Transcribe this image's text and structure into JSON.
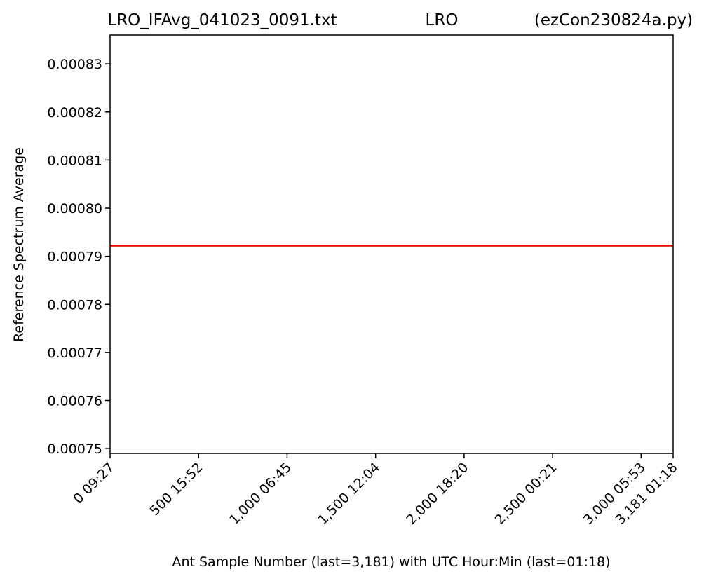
{
  "chart_data": {
    "type": "line",
    "title_parts": {
      "left": "LRO_IFAvg_041023_0091.txt",
      "center": "LRO",
      "right": "(ezCon230824a.py)"
    },
    "xlabel": "Ant Sample Number (last=3,181) with UTC Hour:Min (last=01:18)",
    "ylabel": "Reference Spectrum Average",
    "xlim": [
      0,
      3181
    ],
    "ylim": [
      0.000749,
      0.000836
    ],
    "x_ticks": [
      {
        "value": 0,
        "label": "0  09:27"
      },
      {
        "value": 500,
        "label": "500  15:52"
      },
      {
        "value": 1000,
        "label": "1,000  06:45"
      },
      {
        "value": 1500,
        "label": "1,500  12:04"
      },
      {
        "value": 2000,
        "label": "2,000  18:20"
      },
      {
        "value": 2500,
        "label": "2,500  00:21"
      },
      {
        "value": 3000,
        "label": "3,000  05:53"
      },
      {
        "value": 3181,
        "label": "3,181  01:18"
      }
    ],
    "y_ticks": [
      {
        "value": 0.00075,
        "label": "0.00075"
      },
      {
        "value": 0.00076,
        "label": "0.00076"
      },
      {
        "value": 0.00077,
        "label": "0.00077"
      },
      {
        "value": 0.00078,
        "label": "0.00078"
      },
      {
        "value": 0.00079,
        "label": "0.00079"
      },
      {
        "value": 0.0008,
        "label": "0.00080"
      },
      {
        "value": 0.00081,
        "label": "0.00081"
      },
      {
        "value": 0.00082,
        "label": "0.00082"
      },
      {
        "value": 0.00083,
        "label": "0.00083"
      }
    ],
    "series": [
      {
        "color": "#dd0000",
        "x": [
          0,
          3181
        ],
        "y": [
          0.0007922,
          0.0007922
        ]
      }
    ],
    "grid": false,
    "legend": "none"
  }
}
